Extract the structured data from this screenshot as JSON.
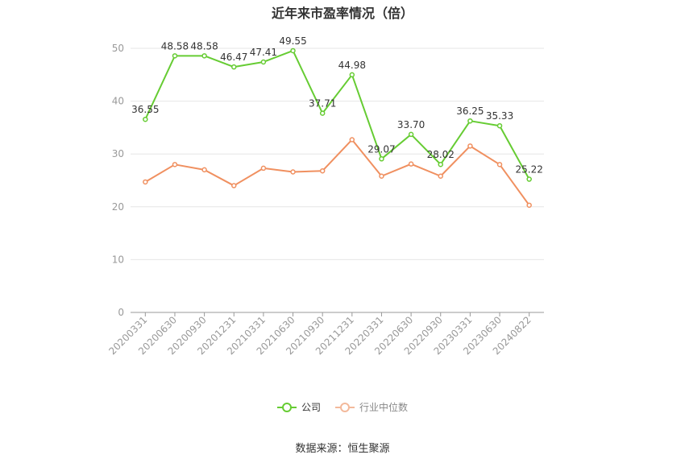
{
  "title": "近年来市盈率情况（倍）",
  "source": "数据来源：恒生聚源",
  "chart_data": {
    "type": "line",
    "categories": [
      "20200331",
      "20200630",
      "20200930",
      "20201231",
      "20210331",
      "20210630",
      "20210930",
      "20211231",
      "20220331",
      "20220630",
      "20220930",
      "20230331",
      "20230630",
      "20240822"
    ],
    "ylim": [
      0,
      50
    ],
    "yticks": [
      0,
      10,
      20,
      30,
      40,
      50
    ],
    "grid": true,
    "legend_position": "bottom",
    "series": [
      {
        "name": "公司",
        "color": "#66cc33",
        "show_labels": true,
        "values": [
          36.55,
          48.58,
          48.58,
          46.47,
          47.41,
          49.55,
          37.71,
          44.98,
          29.07,
          33.7,
          28.02,
          36.25,
          35.33,
          25.22
        ],
        "labels": [
          "36.55",
          "48.58",
          "48.58",
          "46.47",
          "47.41",
          "49.55",
          "37.71",
          "44.98",
          "29.07",
          "33.70",
          "28.02",
          "36.25",
          "35.33",
          "25.22"
        ]
      },
      {
        "name": "行业中位数",
        "color": "#f09060",
        "show_labels": false,
        "values": [
          24.7,
          28.0,
          27.0,
          24.0,
          27.3,
          26.6,
          26.8,
          32.7,
          25.8,
          28.1,
          25.8,
          31.5,
          28.0,
          20.3
        ]
      }
    ]
  }
}
